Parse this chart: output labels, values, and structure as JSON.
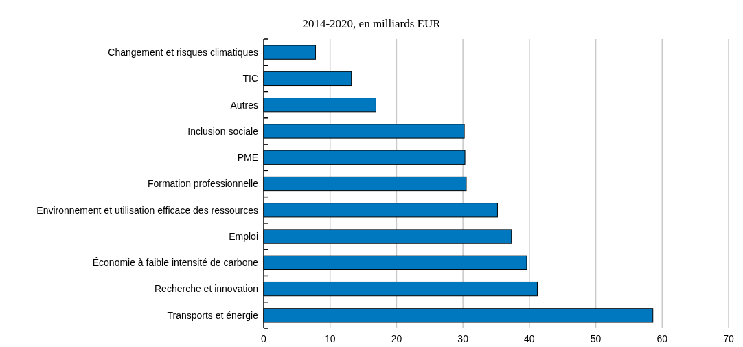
{
  "chart_data": {
    "type": "bar",
    "orientation": "horizontal",
    "subtitle": "2014-2020, en milliards EUR",
    "categories": [
      "Changement et risques climatiques",
      "TIC",
      "Autres",
      "Inclusion sociale",
      "PME",
      "Formation professionnelle",
      "Environnement et utilisation efficace des ressources",
      "Emploi",
      "Économie à faible intensité de carbone",
      "Recherche et innovation",
      "Transports et énergie"
    ],
    "values": [
      7.8,
      13.2,
      16.9,
      30.2,
      30.3,
      30.5,
      35.2,
      37.3,
      39.6,
      41.2,
      58.6
    ],
    "color": "#0078bf",
    "xlim": [
      0,
      70
    ],
    "xticks": [
      0,
      10,
      20,
      30,
      40,
      50,
      60,
      70
    ],
    "grid": "x"
  }
}
